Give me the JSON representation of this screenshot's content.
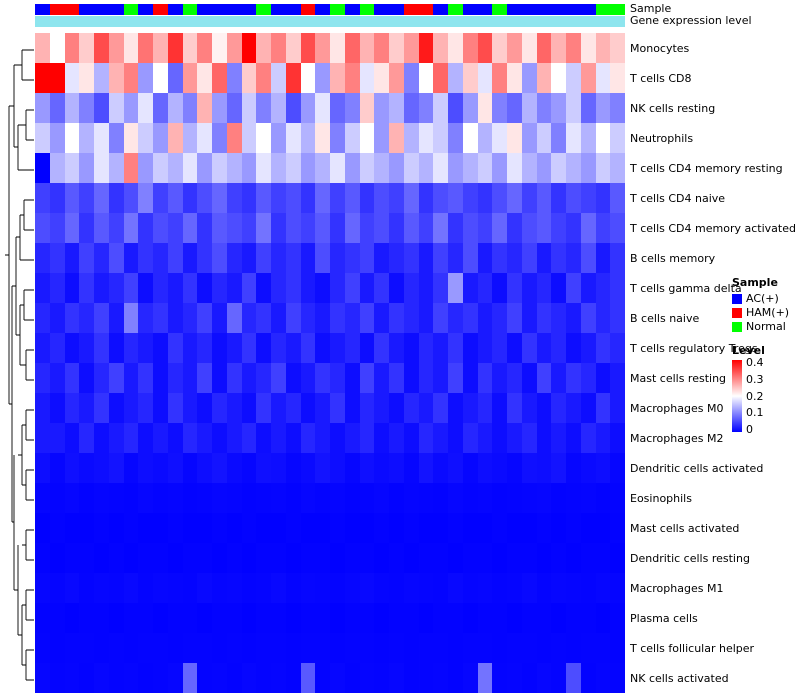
{
  "annotation": {
    "sample_label": "Sample",
    "gene_label": "Gene expression level",
    "gene_bar_color": "#8EE5EE"
  },
  "legend": {
    "sample": {
      "title": "Sample",
      "items": [
        {
          "label": "AC(+)",
          "color": "#0000FF"
        },
        {
          "label": "HAM(+)",
          "color": "#FF0000"
        },
        {
          "label": "Normal",
          "color": "#00FF00"
        }
      ]
    },
    "level": {
      "title": "Level",
      "ticks": [
        "0.4",
        "0.3",
        "0.2",
        "0.1",
        "0"
      ],
      "gradient": [
        "#FF0000",
        "#FFFFFF",
        "#0000FF"
      ]
    }
  },
  "chart_data": {
    "type": "heatmap",
    "title": "",
    "value_range": [
      0,
      0.4
    ],
    "colormap": "blue-white-red",
    "n_columns": 40,
    "column_annotation": {
      "name": "Sample",
      "colors": {
        "AC(+)": "#0000FF",
        "HAM(+)": "#FF0000",
        "Normal": "#00FF00"
      },
      "values": [
        "AC(+)",
        "HAM(+)",
        "HAM(+)",
        "AC(+)",
        "AC(+)",
        "AC(+)",
        "Normal",
        "AC(+)",
        "HAM(+)",
        "AC(+)",
        "Normal",
        "AC(+)",
        "AC(+)",
        "AC(+)",
        "AC(+)",
        "Normal",
        "AC(+)",
        "AC(+)",
        "HAM(+)",
        "AC(+)",
        "Normal",
        "AC(+)",
        "Normal",
        "AC(+)",
        "AC(+)",
        "HAM(+)",
        "HAM(+)",
        "AC(+)",
        "Normal",
        "AC(+)",
        "AC(+)",
        "Normal",
        "AC(+)",
        "AC(+)",
        "AC(+)",
        "AC(+)",
        "AC(+)",
        "AC(+)",
        "Normal",
        "Normal"
      ]
    },
    "rows": [
      {
        "name": "Monocytes",
        "values": [
          0.26,
          0.2,
          0.3,
          0.24,
          0.34,
          0.28,
          0.22,
          0.31,
          0.26,
          0.36,
          0.24,
          0.3,
          0.21,
          0.28,
          0.4,
          0.26,
          0.3,
          0.24,
          0.34,
          0.28,
          0.22,
          0.32,
          0.26,
          0.3,
          0.24,
          0.28,
          0.38,
          0.26,
          0.22,
          0.3,
          0.34,
          0.24,
          0.28,
          0.22,
          0.32,
          0.26,
          0.3,
          0.22,
          0.26,
          0.24
        ]
      },
      {
        "name": "T cells CD8",
        "values": [
          0.4,
          0.42,
          0.18,
          0.22,
          0.14,
          0.26,
          0.3,
          0.12,
          0.2,
          0.08,
          0.28,
          0.22,
          0.32,
          0.1,
          0.24,
          0.3,
          0.16,
          0.36,
          0.2,
          0.12,
          0.26,
          0.3,
          0.18,
          0.22,
          0.28,
          0.1,
          0.2,
          0.32,
          0.14,
          0.24,
          0.18,
          0.3,
          0.22,
          0.12,
          0.26,
          0.2,
          0.16,
          0.28,
          0.18,
          0.22
        ]
      },
      {
        "name": "NK cells resting",
        "values": [
          0.12,
          0.08,
          0.14,
          0.1,
          0.06,
          0.16,
          0.12,
          0.18,
          0.08,
          0.14,
          0.1,
          0.26,
          0.12,
          0.08,
          0.16,
          0.1,
          0.14,
          0.06,
          0.12,
          0.18,
          0.08,
          0.1,
          0.24,
          0.12,
          0.14,
          0.08,
          0.1,
          0.16,
          0.06,
          0.12,
          0.22,
          0.1,
          0.08,
          0.14,
          0.1,
          0.12,
          0.16,
          0.08,
          0.12,
          0.1
        ]
      },
      {
        "name": "Neutrophils",
        "values": [
          0.16,
          0.12,
          0.2,
          0.14,
          0.18,
          0.1,
          0.22,
          0.16,
          0.12,
          0.26,
          0.14,
          0.18,
          0.1,
          0.3,
          0.16,
          0.2,
          0.12,
          0.18,
          0.14,
          0.22,
          0.1,
          0.16,
          0.2,
          0.12,
          0.26,
          0.14,
          0.18,
          0.16,
          0.1,
          0.2,
          0.14,
          0.18,
          0.22,
          0.12,
          0.16,
          0.1,
          0.18,
          0.14,
          0.2,
          0.16
        ]
      },
      {
        "name": "T cells CD4 memory resting",
        "values": [
          0.0,
          0.14,
          0.16,
          0.12,
          0.18,
          0.14,
          0.3,
          0.12,
          0.16,
          0.14,
          0.18,
          0.12,
          0.16,
          0.14,
          0.12,
          0.18,
          0.14,
          0.16,
          0.12,
          0.14,
          0.18,
          0.12,
          0.16,
          0.14,
          0.12,
          0.16,
          0.14,
          0.18,
          0.12,
          0.14,
          0.16,
          0.12,
          0.18,
          0.14,
          0.12,
          0.16,
          0.14,
          0.12,
          0.16,
          0.14
        ]
      },
      {
        "name": "T cells CD4 naive",
        "values": [
          0.05,
          0.04,
          0.07,
          0.05,
          0.08,
          0.04,
          0.06,
          0.1,
          0.05,
          0.07,
          0.04,
          0.06,
          0.08,
          0.05,
          0.04,
          0.07,
          0.05,
          0.06,
          0.04,
          0.08,
          0.05,
          0.07,
          0.04,
          0.06,
          0.05,
          0.08,
          0.04,
          0.06,
          0.07,
          0.05,
          0.04,
          0.06,
          0.08,
          0.05,
          0.07,
          0.04,
          0.06,
          0.05,
          0.04,
          0.07
        ]
      },
      {
        "name": "T cells CD4 memory activated",
        "values": [
          0.06,
          0.05,
          0.08,
          0.04,
          0.07,
          0.05,
          0.09,
          0.04,
          0.06,
          0.05,
          0.08,
          0.04,
          0.07,
          0.06,
          0.05,
          0.09,
          0.04,
          0.06,
          0.05,
          0.07,
          0.04,
          0.08,
          0.05,
          0.06,
          0.04,
          0.07,
          0.05,
          0.09,
          0.04,
          0.06,
          0.05,
          0.08,
          0.04,
          0.06,
          0.07,
          0.05,
          0.04,
          0.08,
          0.05,
          0.06
        ]
      },
      {
        "name": "B cells memory",
        "values": [
          0.03,
          0.04,
          0.02,
          0.05,
          0.03,
          0.06,
          0.02,
          0.04,
          0.03,
          0.05,
          0.02,
          0.04,
          0.06,
          0.03,
          0.02,
          0.05,
          0.03,
          0.04,
          0.02,
          0.06,
          0.03,
          0.04,
          0.05,
          0.02,
          0.03,
          0.04,
          0.02,
          0.05,
          0.03,
          0.06,
          0.02,
          0.04,
          0.03,
          0.05,
          0.02,
          0.04,
          0.03,
          0.06,
          0.02,
          0.04
        ]
      },
      {
        "name": "T cells gamma delta",
        "values": [
          0.02,
          0.03,
          0.01,
          0.04,
          0.02,
          0.03,
          0.05,
          0.01,
          0.03,
          0.02,
          0.04,
          0.01,
          0.03,
          0.02,
          0.05,
          0.01,
          0.03,
          0.04,
          0.02,
          0.01,
          0.03,
          0.05,
          0.02,
          0.04,
          0.01,
          0.03,
          0.02,
          0.04,
          0.12,
          0.02,
          0.03,
          0.01,
          0.04,
          0.02,
          0.03,
          0.01,
          0.05,
          0.02,
          0.03,
          0.04
        ]
      },
      {
        "name": "B cells naive",
        "values": [
          0.03,
          0.02,
          0.04,
          0.03,
          0.05,
          0.02,
          0.1,
          0.03,
          0.04,
          0.02,
          0.03,
          0.05,
          0.02,
          0.08,
          0.03,
          0.04,
          0.02,
          0.05,
          0.03,
          0.02,
          0.04,
          0.03,
          0.05,
          0.02,
          0.04,
          0.03,
          0.02,
          0.05,
          0.03,
          0.04,
          0.02,
          0.03,
          0.05,
          0.02,
          0.04,
          0.03,
          0.02,
          0.05,
          0.03,
          0.04
        ]
      },
      {
        "name": "T cells regulatory Tregs",
        "values": [
          0.02,
          0.03,
          0.01,
          0.02,
          0.04,
          0.01,
          0.03,
          0.02,
          0.01,
          0.04,
          0.02,
          0.03,
          0.01,
          0.02,
          0.04,
          0.01,
          0.03,
          0.02,
          0.04,
          0.01,
          0.02,
          0.03,
          0.01,
          0.04,
          0.02,
          0.01,
          0.03,
          0.02,
          0.04,
          0.01,
          0.02,
          0.03,
          0.01,
          0.04,
          0.02,
          0.03,
          0.01,
          0.02,
          0.04,
          0.03
        ]
      },
      {
        "name": "Mast cells resting",
        "values": [
          0.03,
          0.02,
          0.04,
          0.01,
          0.03,
          0.05,
          0.02,
          0.04,
          0.01,
          0.03,
          0.02,
          0.05,
          0.01,
          0.04,
          0.02,
          0.03,
          0.05,
          0.01,
          0.02,
          0.04,
          0.03,
          0.01,
          0.05,
          0.02,
          0.04,
          0.01,
          0.03,
          0.02,
          0.05,
          0.01,
          0.04,
          0.02,
          0.03,
          0.01,
          0.05,
          0.02,
          0.04,
          0.03,
          0.01,
          0.02
        ]
      },
      {
        "name": "Macrophages M0",
        "values": [
          0.02,
          0.01,
          0.03,
          0.02,
          0.04,
          0.01,
          0.02,
          0.03,
          0.01,
          0.04,
          0.02,
          0.01,
          0.03,
          0.02,
          0.01,
          0.04,
          0.02,
          0.03,
          0.01,
          0.02,
          0.04,
          0.01,
          0.03,
          0.02,
          0.01,
          0.03,
          0.02,
          0.04,
          0.01,
          0.02,
          0.03,
          0.01,
          0.04,
          0.02,
          0.01,
          0.03,
          0.02,
          0.01,
          0.04,
          0.02
        ]
      },
      {
        "name": "Macrophages M2",
        "values": [
          0.02,
          0.02,
          0.01,
          0.03,
          0.01,
          0.02,
          0.03,
          0.01,
          0.02,
          0.01,
          0.03,
          0.02,
          0.01,
          0.02,
          0.03,
          0.01,
          0.02,
          0.01,
          0.03,
          0.02,
          0.01,
          0.02,
          0.03,
          0.01,
          0.02,
          0.01,
          0.03,
          0.02,
          0.01,
          0.03,
          0.02,
          0.01,
          0.02,
          0.03,
          0.01,
          0.02,
          0.01,
          0.03,
          0.02,
          0.01
        ]
      },
      {
        "name": "Dendritic cells activated",
        "values": [
          0.01,
          0.005,
          0.012,
          0.008,
          0.01,
          0.015,
          0.005,
          0.01,
          0.008,
          0.012,
          0.005,
          0.01,
          0.015,
          0.008,
          0.005,
          0.012,
          0.01,
          0.005,
          0.008,
          0.015,
          0.01,
          0.005,
          0.012,
          0.008,
          0.01,
          0.005,
          0.015,
          0.008,
          0.012,
          0.005,
          0.01,
          0.008,
          0.005,
          0.012,
          0.01,
          0.015,
          0.005,
          0.008,
          0.01,
          0.005
        ]
      },
      {
        "name": "Eosinophils",
        "values": [
          0.004,
          0.003,
          0.005,
          0.002,
          0.004,
          0.003,
          0.002,
          0.005,
          0.003,
          0.004,
          0.002,
          0.003,
          0.005,
          0.004,
          0.002,
          0.003,
          0.004,
          0.002,
          0.005,
          0.003,
          0.004,
          0.002,
          0.003,
          0.005,
          0.002,
          0.004,
          0.003,
          0.002,
          0.005,
          0.003,
          0.004,
          0.002,
          0.003,
          0.004,
          0.005,
          0.002,
          0.003,
          0.004,
          0.002,
          0.003
        ]
      },
      {
        "name": "Mast cells activated",
        "values": [
          0.001,
          0.002,
          0.001,
          0.001,
          0.002,
          0.001,
          0.002,
          0.001,
          0.001,
          0.002,
          0.001,
          0.001,
          0.002,
          0.001,
          0.002,
          0.001,
          0.001,
          0.002,
          0.001,
          0.001,
          0.002,
          0.001,
          0.001,
          0.002,
          0.001,
          0.002,
          0.001,
          0.001,
          0.002,
          0.001,
          0.001,
          0.002,
          0.001,
          0.001,
          0.002,
          0.001,
          0.002,
          0.001,
          0.001,
          0.002
        ]
      },
      {
        "name": "Dendritic cells resting",
        "values": [
          0.002,
          0.001,
          0.002,
          0.002,
          0.001,
          0.002,
          0.001,
          0.002,
          0.002,
          0.001,
          0.002,
          0.002,
          0.001,
          0.002,
          0.001,
          0.002,
          0.002,
          0.001,
          0.002,
          0.002,
          0.001,
          0.002,
          0.002,
          0.001,
          0.002,
          0.001,
          0.002,
          0.002,
          0.001,
          0.002,
          0.002,
          0.001,
          0.002,
          0.002,
          0.001,
          0.002,
          0.001,
          0.002,
          0.002,
          0.001
        ]
      },
      {
        "name": "Macrophages M1",
        "values": [
          0.005,
          0.004,
          0.006,
          0.003,
          0.005,
          0.004,
          0.006,
          0.003,
          0.005,
          0.004,
          0.003,
          0.006,
          0.004,
          0.005,
          0.003,
          0.004,
          0.006,
          0.003,
          0.005,
          0.004,
          0.003,
          0.005,
          0.006,
          0.004,
          0.003,
          0.005,
          0.004,
          0.003,
          0.006,
          0.004,
          0.005,
          0.003,
          0.004,
          0.006,
          0.003,
          0.005,
          0.004,
          0.003,
          0.005,
          0.004
        ]
      },
      {
        "name": "Plasma cells",
        "values": [
          0.002,
          0.002,
          0.001,
          0.002,
          0.002,
          0.001,
          0.002,
          0.002,
          0.001,
          0.002,
          0.002,
          0.001,
          0.002,
          0.002,
          0.001,
          0.002,
          0.002,
          0.001,
          0.002,
          0.002,
          0.001,
          0.002,
          0.002,
          0.001,
          0.002,
          0.002,
          0.001,
          0.002,
          0.002,
          0.001,
          0.002,
          0.002,
          0.001,
          0.002,
          0.002,
          0.001,
          0.002,
          0.002,
          0.001,
          0.002
        ]
      },
      {
        "name": "T cells follicular helper",
        "values": [
          0.003,
          0.002,
          0.003,
          0.003,
          0.002,
          0.003,
          0.002,
          0.003,
          0.003,
          0.002,
          0.003,
          0.003,
          0.002,
          0.003,
          0.002,
          0.003,
          0.003,
          0.002,
          0.003,
          0.003,
          0.002,
          0.003,
          0.003,
          0.002,
          0.003,
          0.002,
          0.003,
          0.003,
          0.002,
          0.003,
          0.003,
          0.002,
          0.003,
          0.003,
          0.002,
          0.003,
          0.002,
          0.003,
          0.003,
          0.002
        ]
      },
      {
        "name": "NK cells activated",
        "values": [
          0.005,
          0.003,
          0.004,
          0.002,
          0.005,
          0.003,
          0.004,
          0.002,
          0.003,
          0.005,
          0.08,
          0.003,
          0.004,
          0.002,
          0.005,
          0.003,
          0.004,
          0.002,
          0.07,
          0.003,
          0.005,
          0.002,
          0.004,
          0.003,
          0.005,
          0.002,
          0.003,
          0.004,
          0.002,
          0.005,
          0.09,
          0.003,
          0.004,
          0.002,
          0.005,
          0.003,
          0.06,
          0.002,
          0.004,
          0.003
        ]
      }
    ]
  }
}
